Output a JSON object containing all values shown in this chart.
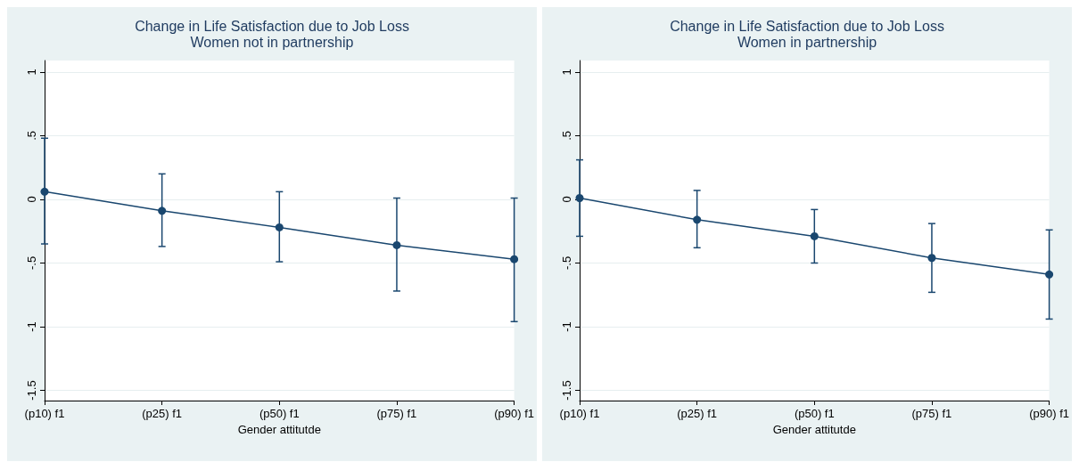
{
  "chart_data": [
    {
      "type": "line",
      "title": "Change in Life Satisfaction due to Job Loss",
      "subtitle": "Women not in partnership",
      "xlabel": "Gender attitutde",
      "categories": [
        "(p10) f1",
        "(p25) f1",
        "(p50) f1",
        "(p75) f1",
        "(p90) f1"
      ],
      "series": [
        {
          "color": "#1a476f",
          "values": [
            0.06,
            -0.09,
            -0.22,
            -0.36,
            -0.47
          ],
          "errors": [
            [
              -0.35,
              0.48
            ],
            [
              -0.37,
              0.2
            ],
            [
              -0.49,
              0.06
            ],
            [
              -0.72,
              0.01
            ],
            [
              -0.96,
              0.01
            ]
          ]
        }
      ],
      "ylim": [
        -1.58,
        1.09
      ],
      "yticks": [
        {
          "value": -1.5,
          "label": "-1.5"
        },
        -1,
        {
          "value": -0.5,
          "label": "-.5"
        },
        0,
        {
          "value": 0.5,
          "label": ".5"
        },
        1
      ],
      "grid": "y",
      "marker": "circle",
      "line_style": "solid"
    },
    {
      "type": "line",
      "title": "Change in Life Satisfaction due to Job Loss",
      "subtitle": "Women in partnership",
      "xlabel": "Gender attitutde",
      "categories": [
        "(p10) f1",
        "(p25) f1",
        "(p50) f1",
        "(p75) f1",
        "(p90) f1"
      ],
      "series": [
        {
          "color": "#1a476f",
          "values": [
            0.01,
            -0.16,
            -0.29,
            -0.46,
            -0.59
          ],
          "errors": [
            [
              -0.29,
              0.31
            ],
            [
              -0.38,
              0.07
            ],
            [
              -0.5,
              -0.08
            ],
            [
              -0.73,
              -0.19
            ],
            [
              -0.94,
              -0.24
            ]
          ]
        }
      ],
      "ylim": [
        -1.58,
        1.09
      ],
      "yticks": [
        {
          "value": -1.5,
          "label": "-1.5"
        },
        -1,
        {
          "value": -0.5,
          "label": "-.5"
        },
        0,
        {
          "value": 0.5,
          "label": ".5"
        },
        1
      ],
      "grid": "y",
      "marker": "circle",
      "line_style": "solid"
    }
  ]
}
